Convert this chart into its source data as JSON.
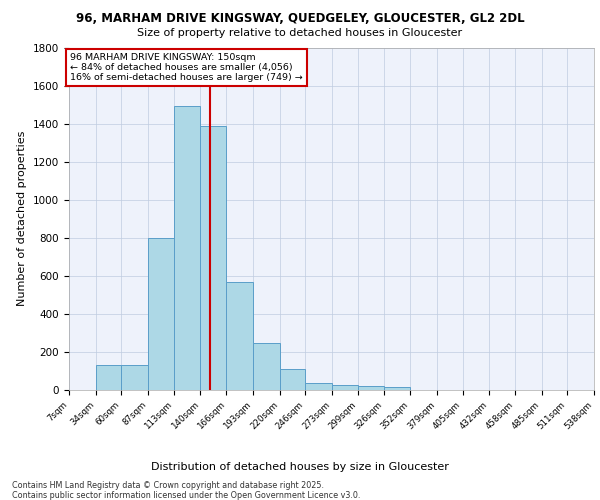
{
  "title_line1": "96, MARHAM DRIVE KINGSWAY, QUEDGELEY, GLOUCESTER, GL2 2DL",
  "title_line2": "Size of property relative to detached houses in Gloucester",
  "xlabel": "Distribution of detached houses by size in Gloucester",
  "ylabel": "Number of detached properties",
  "bins": [
    7,
    34,
    60,
    87,
    113,
    140,
    166,
    193,
    220,
    246,
    273,
    299,
    326,
    352,
    379,
    405,
    432,
    458,
    485,
    511,
    538
  ],
  "values": [
    0,
    130,
    130,
    800,
    1490,
    1390,
    570,
    245,
    110,
    35,
    25,
    20,
    15,
    0,
    0,
    0,
    0,
    0,
    0,
    0
  ],
  "bar_color": "#add8e6",
  "bar_edge_color": "#5a9ec9",
  "vline_x": 150,
  "vline_color": "#cc0000",
  "ylim": [
    0,
    1800
  ],
  "yticks": [
    0,
    200,
    400,
    600,
    800,
    1000,
    1200,
    1400,
    1600,
    1800
  ],
  "annotation_title": "96 MARHAM DRIVE KINGSWAY: 150sqm",
  "annotation_line1": "← 84% of detached houses are smaller (4,056)",
  "annotation_line2": "16% of semi-detached houses are larger (749) →",
  "annotation_box_color": "#cc0000",
  "footer_line1": "Contains HM Land Registry data © Crown copyright and database right 2025.",
  "footer_line2": "Contains public sector information licensed under the Open Government Licence v3.0.",
  "bg_color": "#eef2fb",
  "grid_color": "#c0cce0"
}
